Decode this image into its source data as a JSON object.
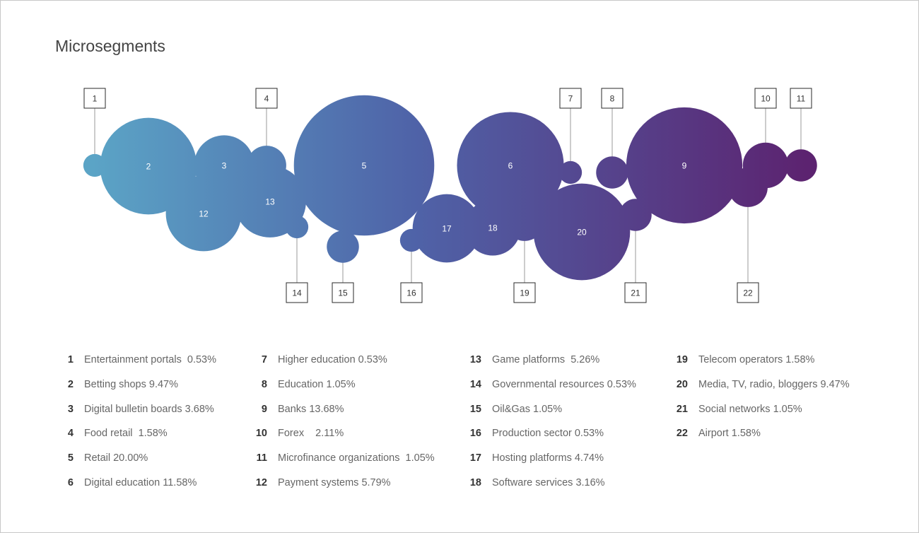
{
  "title": "Microsegments",
  "colors": {
    "start": "#5ba4c6",
    "mid": "#4f63a8",
    "end": "#5c2370"
  },
  "chart_data": {
    "type": "bubble",
    "title": "Microsegments",
    "unit": "%",
    "points": [
      {
        "id": "1",
        "label": "Entertainment portals",
        "value": 0.53,
        "legend": "Entertainment portals  0.53%"
      },
      {
        "id": "2",
        "label": "Betting shops",
        "value": 9.47,
        "legend": "Betting shops 9.47%"
      },
      {
        "id": "3",
        "label": "Digital bulletin boards",
        "value": 3.68,
        "legend": "Digital bulletin boards 3.68%"
      },
      {
        "id": "4",
        "label": "Food retail",
        "value": 1.58,
        "legend": "Food retail  1.58%"
      },
      {
        "id": "5",
        "label": "Retail",
        "value": 20.0,
        "legend": "Retail 20.00%"
      },
      {
        "id": "6",
        "label": "Digital education",
        "value": 11.58,
        "legend": "Digital education 11.58%"
      },
      {
        "id": "7",
        "label": "Higher education",
        "value": 0.53,
        "legend": "Higher education 0.53%"
      },
      {
        "id": "8",
        "label": "Education",
        "value": 1.05,
        "legend": "Education 1.05%"
      },
      {
        "id": "9",
        "label": "Banks",
        "value": 13.68,
        "legend": "Banks 13.68%"
      },
      {
        "id": "10",
        "label": "Forex",
        "value": 2.11,
        "legend": "Forex    2.11%"
      },
      {
        "id": "11",
        "label": "Microfinance organizations",
        "value": 1.05,
        "legend": "Microfinance organizations  1.05%"
      },
      {
        "id": "12",
        "label": "Payment systems",
        "value": 5.79,
        "legend": "Payment systems 5.79%"
      },
      {
        "id": "13",
        "label": "Game platforms",
        "value": 5.26,
        "legend": "Game platforms  5.26%"
      },
      {
        "id": "14",
        "label": "Governmental resources",
        "value": 0.53,
        "legend": "Governmental resources 0.53%"
      },
      {
        "id": "15",
        "label": "Oil&Gas",
        "value": 1.05,
        "legend": "Oil&Gas 1.05%"
      },
      {
        "id": "16",
        "label": "Production sector",
        "value": 0.53,
        "legend": "Production sector 0.53%"
      },
      {
        "id": "17",
        "label": "Hosting platforms",
        "value": 4.74,
        "legend": "Hosting platforms 4.74%"
      },
      {
        "id": "18",
        "label": "Software services",
        "value": 3.16,
        "legend": "Software services 3.16%"
      },
      {
        "id": "19",
        "label": "Telecom operators",
        "value": 1.58,
        "legend": "Telecom operators 1.58%"
      },
      {
        "id": "20",
        "label": "Media, TV, radio, bloggers",
        "value": 9.47,
        "legend": "Media, TV, radio, bloggers 9.47%"
      },
      {
        "id": "21",
        "label": "Social networks",
        "value": 1.05,
        "legend": "Social networks 1.05%"
      },
      {
        "id": "22",
        "label": "Airport",
        "value": 1.58,
        "legend": "Airport 1.58%"
      }
    ]
  }
}
